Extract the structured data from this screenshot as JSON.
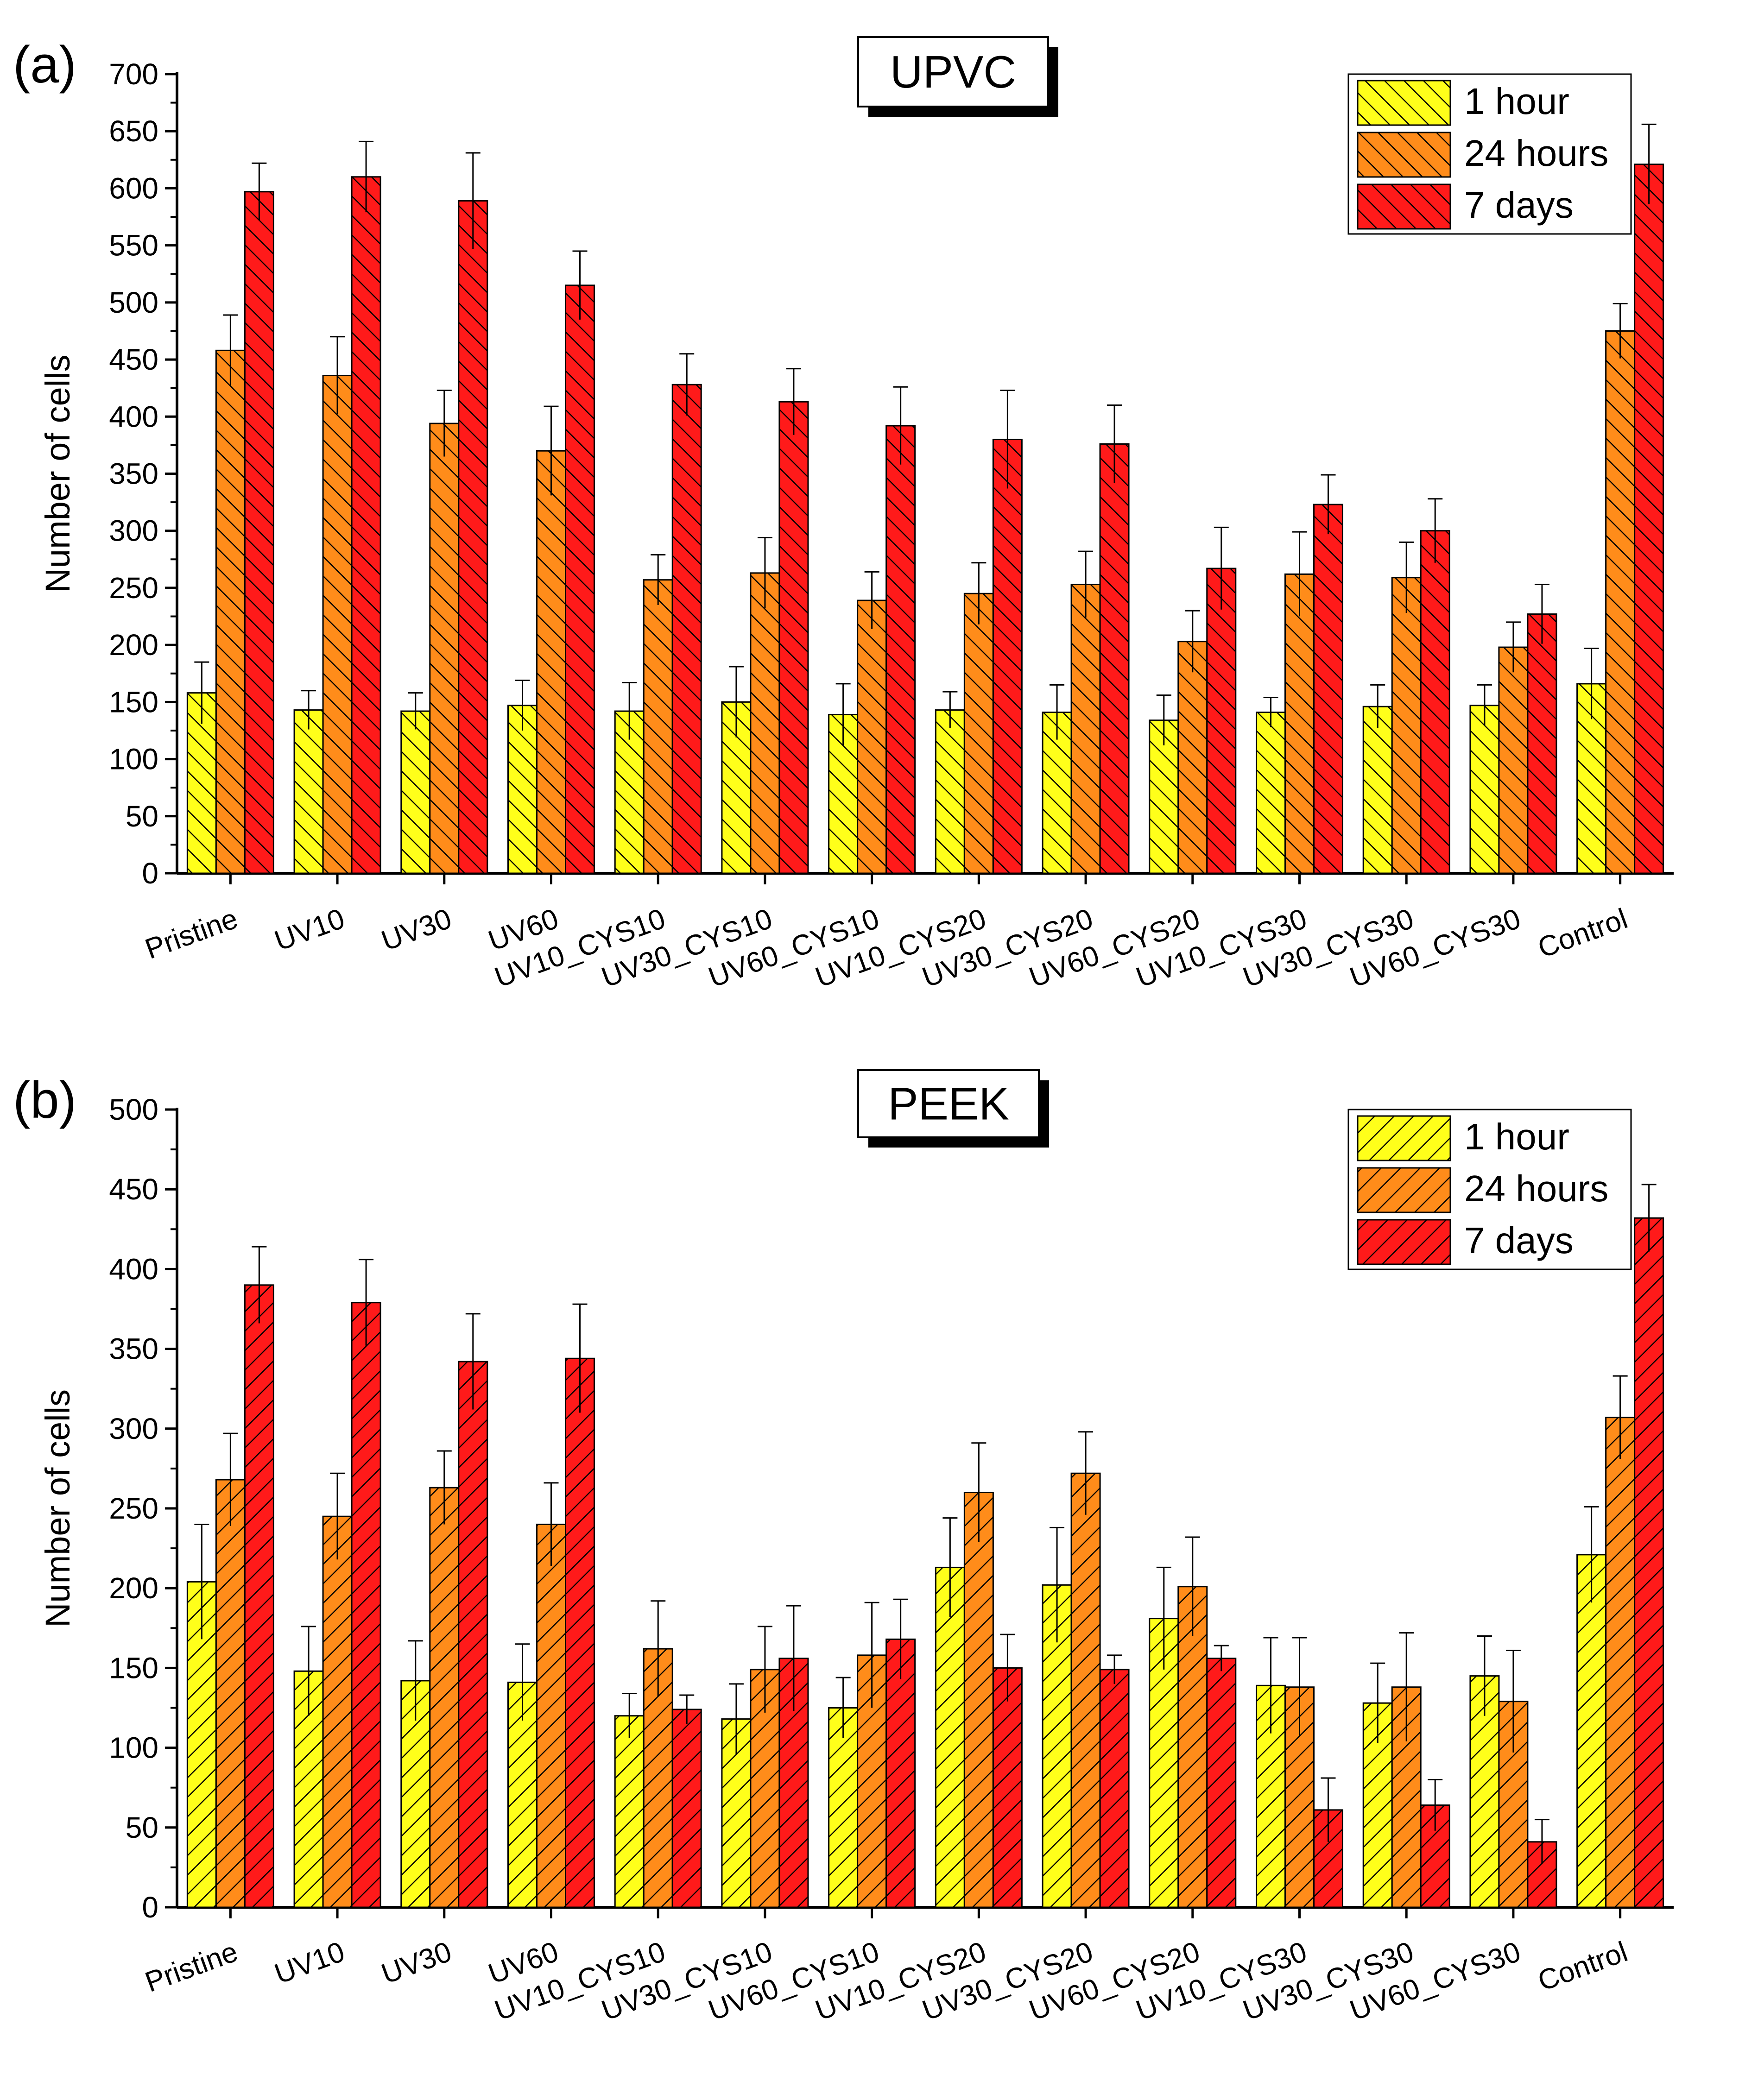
{
  "colors": {
    "1 hour": "#ffff1a",
    "24 hours": "#ff8c1a",
    "7 days": "#ff1a1a",
    "stroke": "#000000",
    "shadow": "#000000"
  },
  "chart_data": [
    {
      "type": "bar",
      "panel_label": "(a)",
      "title": "UPVC",
      "ylabel": "Number of cells",
      "xlabel": "",
      "ylim": [
        0,
        700
      ],
      "ytick_step": 50,
      "hatch": "backslash",
      "legend_position": "top-right",
      "categories": [
        "Pristine",
        "UV10",
        "UV30",
        "UV60",
        "UV10_CYS10",
        "UV30_CYS10",
        "UV60_CYS10",
        "UV10_CYS20",
        "UV30_CYS20",
        "UV60_CYS20",
        "UV10_CYS30",
        "UV30_CYS30",
        "UV60_CYS30",
        "Control"
      ],
      "series": [
        {
          "name": "1 hour",
          "values": [
            158,
            143,
            142,
            147,
            142,
            150,
            139,
            143,
            141,
            134,
            141,
            146,
            147,
            166
          ],
          "errors": [
            27,
            17,
            16,
            22,
            25,
            31,
            27,
            16,
            24,
            22,
            13,
            19,
            18,
            31
          ]
        },
        {
          "name": "24 hours",
          "values": [
            458,
            436,
            394,
            370,
            257,
            263,
            239,
            245,
            253,
            203,
            262,
            259,
            198,
            475
          ],
          "errors": [
            31,
            34,
            29,
            39,
            22,
            31,
            25,
            27,
            29,
            27,
            37,
            31,
            22,
            24
          ]
        },
        {
          "name": "7 days",
          "values": [
            597,
            610,
            589,
            515,
            428,
            413,
            392,
            380,
            376,
            267,
            323,
            300,
            227,
            621
          ],
          "errors": [
            25,
            31,
            42,
            30,
            27,
            29,
            34,
            43,
            34,
            36,
            26,
            28,
            26,
            35
          ]
        }
      ]
    },
    {
      "type": "bar",
      "panel_label": "(b)",
      "title": "PEEK",
      "ylabel": "Number of cells",
      "xlabel": "",
      "ylim": [
        0,
        500
      ],
      "ytick_step": 50,
      "hatch": "slash",
      "legend_position": "top-right",
      "categories": [
        "Pristine",
        "UV10",
        "UV30",
        "UV60",
        "UV10_CYS10",
        "UV30_CYS10",
        "UV60_CYS10",
        "UV10_CYS20",
        "UV30_CYS20",
        "UV60_CYS20",
        "UV10_CYS30",
        "UV30_CYS30",
        "UV60_CYS30",
        "Control"
      ],
      "series": [
        {
          "name": "1 hour",
          "values": [
            204,
            148,
            142,
            141,
            120,
            118,
            125,
            213,
            202,
            181,
            139,
            128,
            145,
            221
          ],
          "errors": [
            36,
            28,
            25,
            24,
            14,
            22,
            19,
            31,
            36,
            32,
            30,
            25,
            25,
            30
          ]
        },
        {
          "name": "24 hours",
          "values": [
            268,
            245,
            263,
            240,
            162,
            149,
            158,
            260,
            272,
            201,
            138,
            138,
            129,
            307
          ],
          "errors": [
            29,
            27,
            23,
            26,
            30,
            27,
            33,
            31,
            26,
            31,
            31,
            34,
            32,
            26
          ]
        },
        {
          "name": "7 days",
          "values": [
            390,
            379,
            342,
            344,
            124,
            156,
            168,
            150,
            149,
            156,
            61,
            64,
            41,
            432
          ],
          "errors": [
            24,
            27,
            30,
            34,
            9,
            33,
            25,
            21,
            9,
            8,
            20,
            16,
            14,
            21
          ]
        }
      ]
    }
  ]
}
